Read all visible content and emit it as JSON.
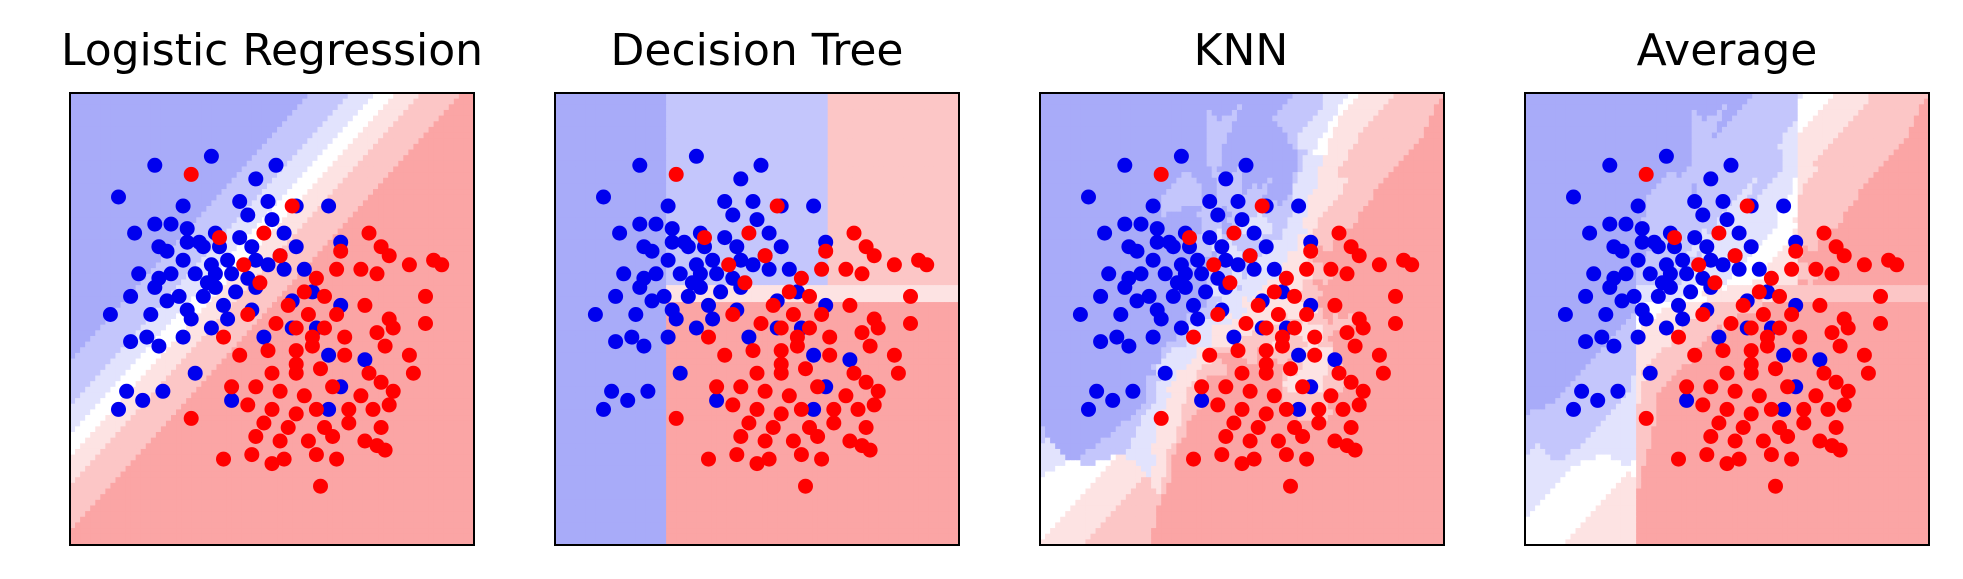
{
  "figure": {
    "background": "#ffffff"
  },
  "colors": {
    "class0_point": "#0000ee",
    "class1_point": "#ff0000",
    "blue_dark": "#a8abf9",
    "blue_mid": "#c4c6fc",
    "blue_light": "#e2e3fd",
    "neutral": "#ffffff",
    "red_light": "#fde3e3",
    "red_mid": "#fcc6c6",
    "red_dark": "#fba5a5",
    "frame": "#000000"
  },
  "chart_data": [
    {
      "type": "scatter",
      "title": "Logistic Regression",
      "model": "logistic",
      "xlim": [
        0,
        10
      ],
      "ylim": [
        0,
        10
      ],
      "xticks": [],
      "yticks": [],
      "grid": false
    },
    {
      "type": "scatter",
      "title": "Decision Tree",
      "model": "tree",
      "xlim": [
        0,
        10
      ],
      "ylim": [
        0,
        10
      ],
      "xticks": [],
      "yticks": [],
      "grid": false
    },
    {
      "type": "scatter",
      "title": "KNN",
      "model": "knn",
      "xlim": [
        0,
        10
      ],
      "ylim": [
        0,
        10
      ],
      "xticks": [],
      "yticks": [],
      "grid": false
    },
    {
      "type": "scatter",
      "title": "Average",
      "model": "average",
      "xlim": [
        0,
        10
      ],
      "ylim": [
        0,
        10
      ],
      "xticks": [],
      "yticks": [],
      "grid": false
    }
  ],
  "points": {
    "class0": [
      [
        2.1,
        8.4
      ],
      [
        1.2,
        7.7
      ],
      [
        3.5,
        8.6
      ],
      [
        5.1,
        8.4
      ],
      [
        4.6,
        8.1
      ],
      [
        4.9,
        7.6
      ],
      [
        4.4,
        7.3
      ],
      [
        5.0,
        7.2
      ],
      [
        5.6,
        7.5
      ],
      [
        6.4,
        7.5
      ],
      [
        2.8,
        7.5
      ],
      [
        2.1,
        7.1
      ],
      [
        2.5,
        7.1
      ],
      [
        2.9,
        7.0
      ],
      [
        1.6,
        6.9
      ],
      [
        2.2,
        6.6
      ],
      [
        3.6,
        6.9
      ],
      [
        4.2,
        6.8
      ],
      [
        4.5,
        6.6
      ],
      [
        5.3,
        6.9
      ],
      [
        2.9,
        6.7
      ],
      [
        3.2,
        6.7
      ],
      [
        2.4,
        6.5
      ],
      [
        2.8,
        6.3
      ],
      [
        3.3,
        6.6
      ],
      [
        3.7,
        6.6
      ],
      [
        3.9,
        6.3
      ],
      [
        4.6,
        6.3
      ],
      [
        4.9,
        6.2
      ],
      [
        5.6,
        6.6
      ],
      [
        5.8,
        6.1
      ],
      [
        6.7,
        6.7
      ],
      [
        1.7,
        6.0
      ],
      [
        2.5,
        6.0
      ],
      [
        3.1,
        6.0
      ],
      [
        3.5,
        6.2
      ],
      [
        4.0,
        6.0
      ],
      [
        4.4,
        5.9
      ],
      [
        5.3,
        6.1
      ],
      [
        6.0,
        5.6
      ],
      [
        2.1,
        5.7
      ],
      [
        2.7,
        5.5
      ],
      [
        3.3,
        5.5
      ],
      [
        3.6,
        5.7
      ],
      [
        4.1,
        5.6
      ],
      [
        4.6,
        5.7
      ],
      [
        5.5,
        5.4
      ],
      [
        1.5,
        5.5
      ],
      [
        2.4,
        5.4
      ],
      [
        2.9,
        5.2
      ],
      [
        3.8,
        5.3
      ],
      [
        4.5,
        5.2
      ],
      [
        1.0,
        5.1
      ],
      [
        2.0,
        5.1
      ],
      [
        3.0,
        5.0
      ],
      [
        3.9,
        5.0
      ],
      [
        6.7,
        5.3
      ],
      [
        1.9,
        4.6
      ],
      [
        2.8,
        4.6
      ],
      [
        3.5,
        4.8
      ],
      [
        4.8,
        4.6
      ],
      [
        6.1,
        4.8
      ],
      [
        2.2,
        4.4
      ],
      [
        1.5,
        4.5
      ],
      [
        7.3,
        4.1
      ],
      [
        5.5,
        4.8
      ],
      [
        6.4,
        4.2
      ],
      [
        6.7,
        3.5
      ],
      [
        3.1,
        3.8
      ],
      [
        4.0,
        3.2
      ],
      [
        2.3,
        3.4
      ],
      [
        1.8,
        3.2
      ],
      [
        1.4,
        3.4
      ],
      [
        1.2,
        3.0
      ],
      [
        6.4,
        3.0
      ],
      [
        2.2,
        5.9
      ],
      [
        3.6,
        6.0
      ],
      [
        4.2,
        7.6
      ],
      [
        5.2,
        6.4
      ],
      [
        3.4,
        5.8
      ]
    ],
    "class1": [
      [
        3.0,
        8.2
      ],
      [
        5.5,
        7.5
      ],
      [
        3.7,
        6.8
      ],
      [
        6.7,
        6.5
      ],
      [
        7.4,
        6.9
      ],
      [
        9.0,
        6.3
      ],
      [
        7.7,
        6.6
      ],
      [
        6.6,
        6.1
      ],
      [
        7.2,
        6.1
      ],
      [
        5.2,
        6.4
      ],
      [
        4.7,
        5.8
      ],
      [
        4.3,
        6.2
      ],
      [
        5.8,
        5.6
      ],
      [
        7.6,
        6.0
      ],
      [
        7.9,
        6.4
      ],
      [
        8.4,
        6.2
      ],
      [
        4.4,
        5.1
      ],
      [
        5.9,
        5.1
      ],
      [
        6.6,
        5.1
      ],
      [
        7.3,
        5.3
      ],
      [
        7.9,
        5.0
      ],
      [
        5.1,
        4.9
      ],
      [
        5.6,
        4.8
      ],
      [
        6.3,
        4.8
      ],
      [
        7.6,
        4.7
      ],
      [
        8.0,
        4.8
      ],
      [
        8.8,
        4.9
      ],
      [
        3.8,
        4.6
      ],
      [
        4.2,
        4.2
      ],
      [
        4.9,
        4.3
      ],
      [
        5.6,
        4.3
      ],
      [
        6.0,
        4.4
      ],
      [
        6.8,
        4.2
      ],
      [
        7.8,
        4.4
      ],
      [
        8.4,
        4.2
      ],
      [
        5.0,
        3.8
      ],
      [
        5.6,
        3.8
      ],
      [
        6.2,
        3.9
      ],
      [
        7.4,
        3.8
      ],
      [
        7.7,
        3.6
      ],
      [
        8.5,
        3.8
      ],
      [
        4.0,
        3.5
      ],
      [
        4.6,
        3.5
      ],
      [
        5.2,
        3.4
      ],
      [
        5.8,
        3.3
      ],
      [
        6.5,
        3.5
      ],
      [
        7.2,
        3.3
      ],
      [
        8.0,
        3.4
      ],
      [
        4.4,
        3.1
      ],
      [
        5.0,
        3.0
      ],
      [
        5.6,
        2.9
      ],
      [
        6.1,
        3.0
      ],
      [
        6.9,
        3.0
      ],
      [
        7.5,
        3.0
      ],
      [
        7.9,
        3.1
      ],
      [
        4.8,
        2.7
      ],
      [
        5.4,
        2.6
      ],
      [
        6.3,
        2.6
      ],
      [
        6.9,
        2.7
      ],
      [
        7.7,
        2.6
      ],
      [
        3.0,
        2.8
      ],
      [
        4.6,
        2.4
      ],
      [
        5.2,
        2.3
      ],
      [
        5.9,
        2.3
      ],
      [
        6.5,
        2.4
      ],
      [
        7.3,
        2.3
      ],
      [
        4.5,
        2.0
      ],
      [
        6.1,
        2.0
      ],
      [
        7.6,
        2.2
      ],
      [
        3.8,
        1.9
      ],
      [
        5.3,
        1.9
      ],
      [
        6.6,
        1.9
      ],
      [
        5.6,
        4.0
      ],
      [
        9.2,
        6.2
      ],
      [
        4.8,
        6.9
      ],
      [
        6.1,
        5.9
      ],
      [
        5.0,
        1.8
      ],
      [
        6.3,
        5.5
      ],
      [
        6.2,
        1.3
      ],
      [
        7.8,
        2.1
      ],
      [
        6.0,
        4.6
      ],
      [
        5.4,
        5.3
      ],
      [
        6.8,
        4.6
      ],
      [
        8.8,
        5.5
      ]
    ]
  }
}
